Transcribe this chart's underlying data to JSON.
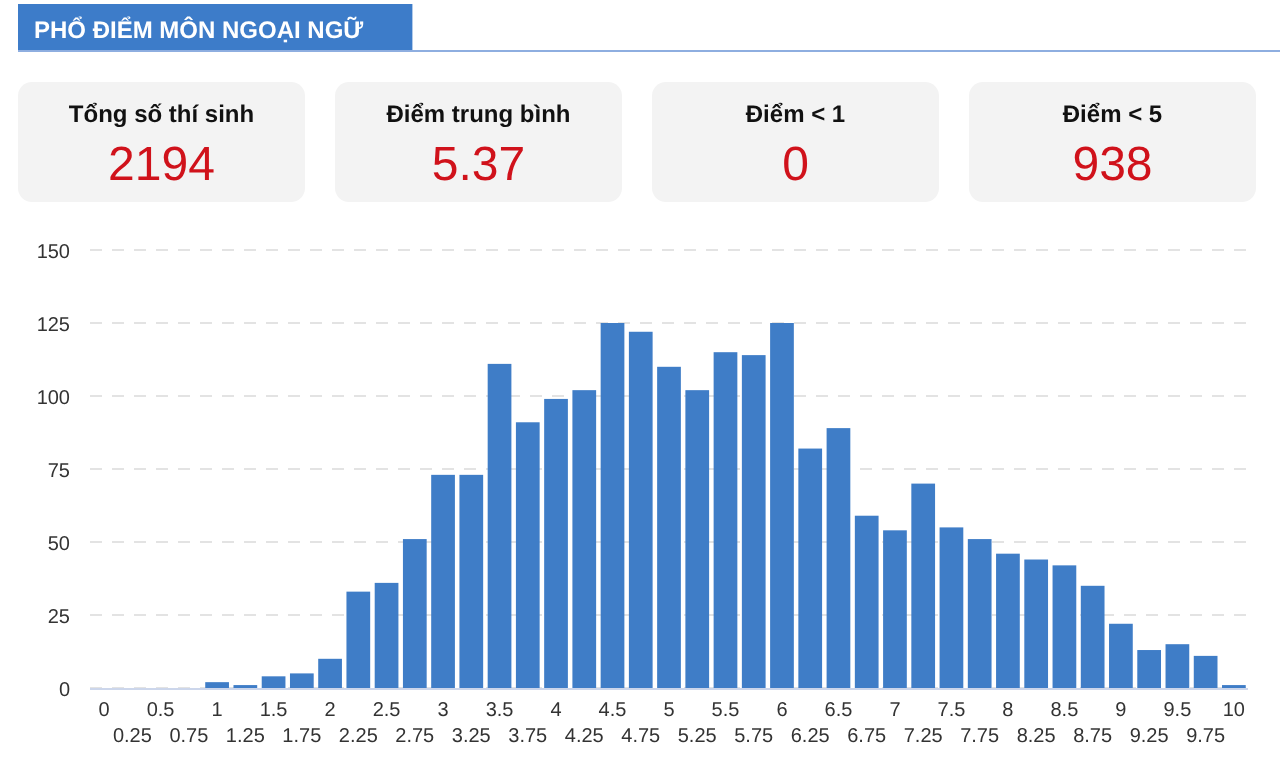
{
  "chart_data": [
    {
      "type": "other",
      "title": "PHỔ ĐIỂM MÔN NGOẠI NGỮ",
      "annotations": [
        "Tổng số thí sinh",
        "2194",
        "Điểm trung bình",
        "5.37",
        "Điểm < 1",
        "0",
        "Điểm < 5",
        "938"
      ]
    },
    {
      "type": "bar",
      "categories": [
        "0",
        "0.25",
        "0.5",
        "0.75",
        "1",
        "1.25",
        "1.5",
        "1.75",
        "2",
        "2.25",
        "2.5",
        "2.75",
        "3",
        "3.25",
        "3.5",
        "3.75",
        "4",
        "4.25",
        "4.5",
        "4.75",
        "5",
        "5.25",
        "5.5",
        "5.75",
        "6",
        "6.25",
        "6.5",
        "6.75",
        "7",
        "7.25",
        "7.5",
        "7.75",
        "8",
        "8.25",
        "8.5",
        "8.75",
        "9",
        "9.25",
        "9.5",
        "9.75",
        "10"
      ],
      "values": [
        0,
        0,
        0,
        0,
        2,
        1,
        4,
        5,
        10,
        33,
        36,
        51,
        73,
        73,
        111,
        91,
        99,
        102,
        125,
        122,
        110,
        102,
        115,
        114,
        125,
        82,
        89,
        59,
        54,
        70,
        55,
        51,
        46,
        44,
        42,
        35,
        22,
        13,
        15,
        11,
        1
      ],
      "color": "#3f7dc7",
      "ylim": [
        0,
        150
      ],
      "yticks": [
        0,
        25,
        50,
        75,
        100,
        125,
        150
      ],
      "grid": "y"
    }
  ]
}
